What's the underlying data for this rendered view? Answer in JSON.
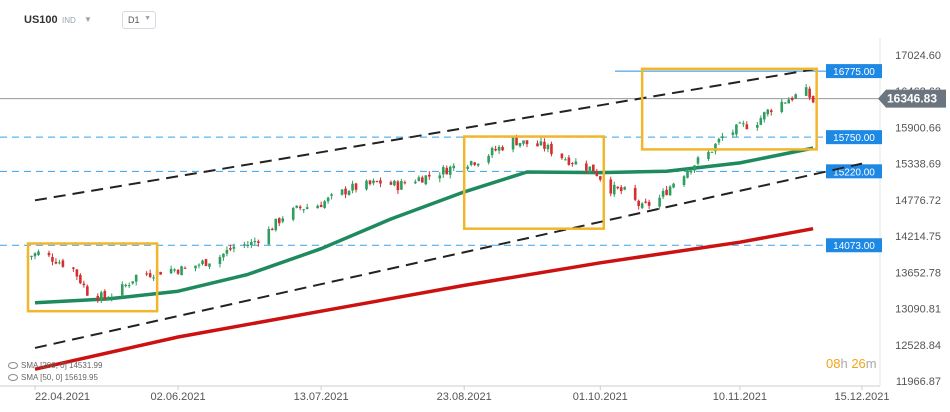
{
  "toolbar": {
    "symbol": "US100",
    "instrument_type": "IND",
    "timeframe": "D1"
  },
  "timer": {
    "hours": "08",
    "h_unit": "h",
    "minutes": "26",
    "m_unit": "m"
  },
  "chart_data": {
    "type": "candlestick",
    "x_tick_labels": [
      "22.04.2021",
      "02.06.2021",
      "13.07.2021",
      "23.08.2021",
      "01.10.2021",
      "10.11.2021",
      "15.12.2021"
    ],
    "y_tick_labels": [
      17024.6,
      16462.63,
      15900.66,
      15338.69,
      14776.72,
      14214.75,
      13652.78,
      13090.81,
      12528.84,
      11966.87
    ],
    "ylim": [
      11966.87,
      17024.6
    ],
    "last_price": 16346.83,
    "price_levels": [
      {
        "label": "16775.00",
        "value": 16775.0,
        "style": "solid"
      },
      {
        "label": "15750.00",
        "value": 15750.0,
        "style": "dashed"
      },
      {
        "label": "15220.00",
        "value": 15220.0,
        "style": "dashed"
      },
      {
        "label": "14073.00",
        "value": 14073.0,
        "style": "dashed"
      }
    ],
    "indicators": [
      {
        "name": "SMA",
        "params": "[200, 0]",
        "value": "14531.99",
        "color": "#cc1111",
        "x": [
          "22.04.2021",
          "02.06.2021",
          "13.07.2021",
          "23.08.2021",
          "01.10.2021",
          "10.11.2021",
          "01.12.2021"
        ],
        "y": [
          12150,
          12650,
          13050,
          13450,
          13800,
          14120,
          14330
        ]
      },
      {
        "name": "SMA",
        "params": "[50, 0]",
        "value": "15619.95",
        "color": "#1e8a5e",
        "x": [
          "22.04.2021",
          "13.05.2021",
          "02.06.2021",
          "22.06.2021",
          "13.07.2021",
          "02.08.2021",
          "23.08.2021",
          "10.09.2021",
          "01.10.2021",
          "20.10.2021",
          "10.11.2021",
          "01.12.2021"
        ],
        "y": [
          13180,
          13240,
          13360,
          13620,
          14020,
          14480,
          14900,
          15210,
          15200,
          15220,
          15350,
          15580
        ]
      }
    ],
    "trendlines": [
      {
        "x": [
          "22.04.2021",
          "01.12.2021"
        ],
        "y": [
          14770,
          16800
        ]
      },
      {
        "x": [
          "22.04.2021",
          "15.12.2021"
        ],
        "y": [
          12480,
          15340
        ]
      }
    ],
    "highlight_boxes": [
      {
        "x": [
          "20.04.2021",
          "27.05.2021"
        ],
        "y": [
          13050,
          14100
        ]
      },
      {
        "x": [
          "23.08.2021",
          "02.10.2021"
        ],
        "y": [
          14330,
          15760
        ]
      },
      {
        "x": [
          "13.10.2021",
          "02.12.2021"
        ],
        "y": [
          15560,
          16810
        ]
      }
    ],
    "close_path": {
      "x": [
        "20.04.2021",
        "23.04.2021",
        "28.04.2021",
        "03.05.2021",
        "07.05.2021",
        "12.05.2021",
        "17.05.2021",
        "21.05.2021",
        "26.05.2021",
        "31.05.2021",
        "04.06.2021",
        "09.06.2021",
        "14.06.2021",
        "18.06.2021",
        "23.06.2021",
        "28.06.2021",
        "02.07.2021",
        "07.07.2021",
        "12.07.2021",
        "16.07.2021",
        "21.07.2021",
        "26.07.2021",
        "30.07.2021",
        "04.08.2021",
        "09.08.2021",
        "13.08.2021",
        "18.08.2021",
        "23.08.2021",
        "27.08.2021",
        "01.09.2021",
        "06.09.2021",
        "10.09.2021",
        "15.09.2021",
        "20.09.2021",
        "24.09.2021",
        "29.09.2021",
        "04.10.2021",
        "08.10.2021",
        "13.10.2021",
        "18.10.2021",
        "22.10.2021",
        "27.10.2021",
        "01.11.2021",
        "05.11.2021",
        "10.11.2021",
        "15.11.2021",
        "19.11.2021",
        "24.11.2021",
        "29.11.2021",
        "01.12.2021"
      ],
      "y": [
        13900,
        13950,
        13850,
        13700,
        13350,
        13250,
        13400,
        13600,
        13650,
        13700,
        13700,
        13800,
        13900,
        14050,
        14100,
        14300,
        14520,
        14650,
        14700,
        14800,
        14950,
        15000,
        15050,
        15000,
        15100,
        15150,
        15250,
        15350,
        15400,
        15550,
        15700,
        15650,
        15600,
        15450,
        15350,
        15250,
        14950,
        14900,
        14650,
        14800,
        15050,
        15300,
        15500,
        15750,
        15900,
        16000,
        16200,
        16350,
        16450,
        16300
      ]
    }
  }
}
